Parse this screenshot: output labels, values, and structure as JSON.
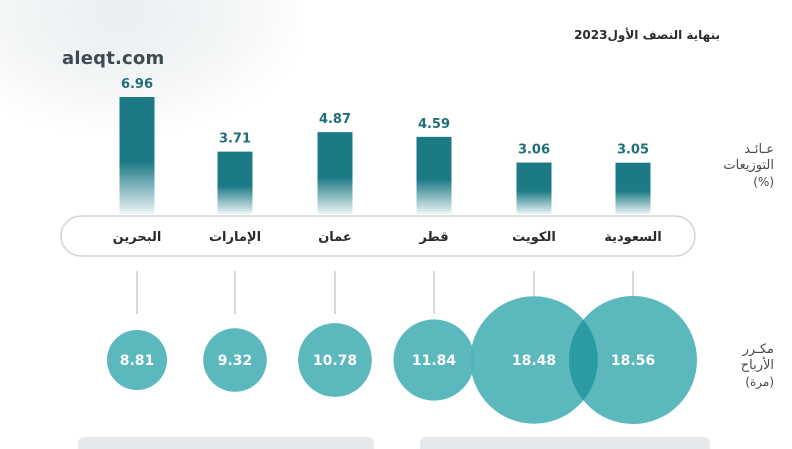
{
  "brand": "aleqt.com",
  "period_label": "بنهاية النصف الأول2023",
  "colors": {
    "bar": "#1c7a86",
    "bubble": "#4fb3b8",
    "bubble_overlap": "#2a9aa3",
    "text_teal": "#1e6f7a",
    "pill_border": "#cfd5d8",
    "connector": "#c9ced1"
  },
  "chart_data": [
    {
      "type": "bar",
      "categories": [
        "البحرين",
        "الإمارات",
        "عمان",
        "قطر",
        "الكويت",
        "السعودية"
      ],
      "values": [
        6.96,
        3.71,
        4.87,
        4.59,
        3.06,
        3.05
      ],
      "value_labels": [
        "6.96",
        "3.71",
        "4.87",
        "4.59",
        "3.06",
        "3.05"
      ],
      "ylabel_lines": [
        "عـائـد",
        "التوزيعات"
      ],
      "unit": "(%)",
      "ylim": [
        0,
        6.96
      ],
      "grid": false
    },
    {
      "type": "scatter",
      "categories": [
        "البحرين",
        "الإمارات",
        "عمان",
        "قطر",
        "الكويت",
        "السعودية"
      ],
      "values": [
        8.81,
        9.32,
        10.78,
        11.84,
        18.48,
        18.56
      ],
      "value_labels": [
        "8.81",
        "9.32",
        "10.78",
        "11.84",
        "18.48",
        "18.56"
      ],
      "ylabel_lines": [
        "مكـرر",
        "الأرباح"
      ],
      "unit": "(مرة)"
    }
  ]
}
